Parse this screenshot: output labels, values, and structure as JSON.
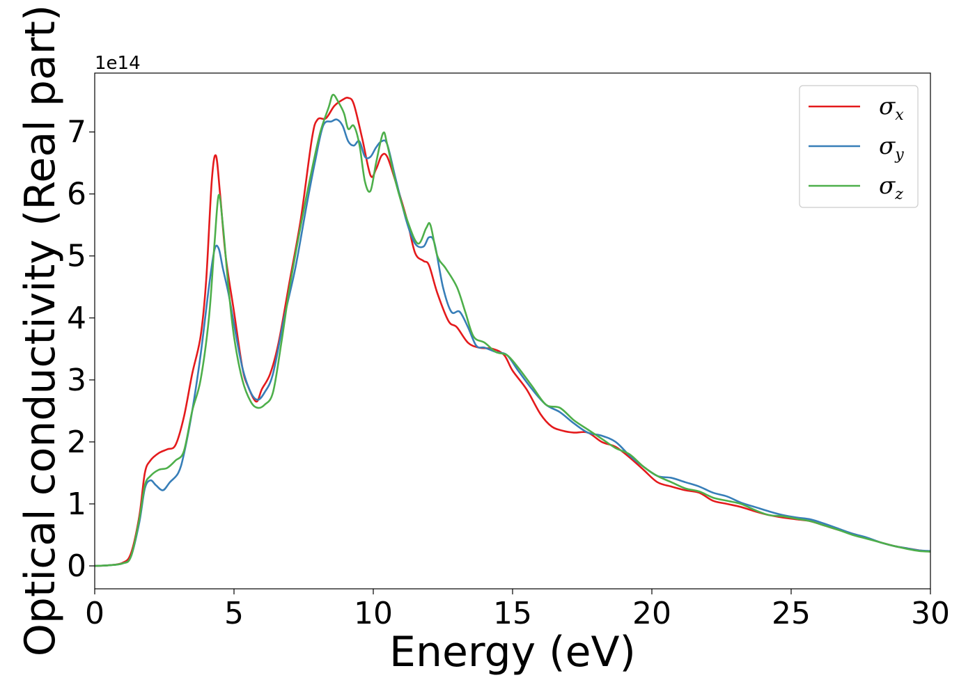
{
  "chart_data": {
    "type": "line",
    "title": "",
    "xlabel": "Energy (eV)",
    "ylabel": "Optical conductivity (Real part)",
    "y_offset_label": "1e14",
    "xlim": [
      0,
      30
    ],
    "ylim": [
      -0.37,
      7.95
    ],
    "x_ticks": [
      0,
      5,
      10,
      15,
      20,
      25,
      30
    ],
    "y_ticks": [
      0,
      1,
      2,
      3,
      4,
      5,
      6,
      7
    ],
    "grid": false,
    "legend_position": "top-right",
    "series": [
      {
        "name": "σx",
        "symbol": "σ",
        "subscript": "x",
        "color": "#e41a1c",
        "points": [
          [
            0,
            0
          ],
          [
            0.5,
            0.01
          ],
          [
            1.0,
            0.05
          ],
          [
            1.3,
            0.2
          ],
          [
            1.6,
            0.8
          ],
          [
            1.8,
            1.5
          ],
          [
            2.0,
            1.7
          ],
          [
            2.3,
            1.82
          ],
          [
            2.6,
            1.88
          ],
          [
            2.9,
            1.95
          ],
          [
            3.2,
            2.4
          ],
          [
            3.5,
            3.1
          ],
          [
            3.8,
            3.7
          ],
          [
            4.0,
            4.6
          ],
          [
            4.2,
            6.2
          ],
          [
            4.35,
            6.62
          ],
          [
            4.5,
            6.0
          ],
          [
            4.7,
            5.0
          ],
          [
            5.0,
            4.1
          ],
          [
            5.3,
            3.2
          ],
          [
            5.5,
            2.9
          ],
          [
            5.8,
            2.65
          ],
          [
            6.0,
            2.85
          ],
          [
            6.3,
            3.1
          ],
          [
            6.6,
            3.6
          ],
          [
            7.0,
            4.6
          ],
          [
            7.4,
            5.6
          ],
          [
            7.8,
            6.9
          ],
          [
            8.0,
            7.2
          ],
          [
            8.3,
            7.22
          ],
          [
            8.6,
            7.42
          ],
          [
            8.9,
            7.52
          ],
          [
            9.1,
            7.55
          ],
          [
            9.3,
            7.45
          ],
          [
            9.6,
            6.9
          ],
          [
            9.9,
            6.3
          ],
          [
            10.1,
            6.4
          ],
          [
            10.3,
            6.62
          ],
          [
            10.5,
            6.6
          ],
          [
            10.8,
            6.2
          ],
          [
            11.2,
            5.6
          ],
          [
            11.5,
            5.05
          ],
          [
            11.8,
            4.92
          ],
          [
            12.0,
            4.85
          ],
          [
            12.3,
            4.4
          ],
          [
            12.7,
            3.95
          ],
          [
            13.0,
            3.85
          ],
          [
            13.4,
            3.6
          ],
          [
            13.8,
            3.52
          ],
          [
            14.3,
            3.5
          ],
          [
            14.7,
            3.4
          ],
          [
            15.0,
            3.15
          ],
          [
            15.5,
            2.85
          ],
          [
            16.0,
            2.45
          ],
          [
            16.4,
            2.25
          ],
          [
            16.8,
            2.18
          ],
          [
            17.2,
            2.15
          ],
          [
            17.7,
            2.15
          ],
          [
            18.2,
            2.0
          ],
          [
            18.7,
            1.92
          ],
          [
            19.2,
            1.75
          ],
          [
            19.7,
            1.55
          ],
          [
            20.2,
            1.35
          ],
          [
            20.7,
            1.28
          ],
          [
            21.2,
            1.22
          ],
          [
            21.7,
            1.18
          ],
          [
            22.2,
            1.05
          ],
          [
            22.7,
            1.0
          ],
          [
            23.2,
            0.95
          ],
          [
            23.7,
            0.88
          ],
          [
            24.2,
            0.82
          ],
          [
            24.7,
            0.78
          ],
          [
            25.2,
            0.75
          ],
          [
            25.7,
            0.72
          ],
          [
            26.2,
            0.65
          ],
          [
            26.7,
            0.58
          ],
          [
            27.2,
            0.52
          ],
          [
            27.7,
            0.45
          ],
          [
            28.2,
            0.38
          ],
          [
            28.7,
            0.32
          ],
          [
            29.2,
            0.28
          ],
          [
            29.6,
            0.25
          ],
          [
            30,
            0.23
          ]
        ]
      },
      {
        "name": "σy",
        "symbol": "σ",
        "subscript": "y",
        "color": "#377eb8",
        "points": [
          [
            0,
            0
          ],
          [
            0.5,
            0.01
          ],
          [
            1.0,
            0.04
          ],
          [
            1.3,
            0.15
          ],
          [
            1.6,
            0.7
          ],
          [
            1.8,
            1.25
          ],
          [
            2.0,
            1.38
          ],
          [
            2.2,
            1.3
          ],
          [
            2.45,
            1.22
          ],
          [
            2.7,
            1.35
          ],
          [
            3.0,
            1.5
          ],
          [
            3.2,
            1.8
          ],
          [
            3.5,
            2.5
          ],
          [
            3.8,
            3.4
          ],
          [
            4.1,
            4.5
          ],
          [
            4.3,
            5.1
          ],
          [
            4.45,
            5.12
          ],
          [
            4.6,
            4.8
          ],
          [
            4.8,
            4.4
          ],
          [
            5.0,
            3.9
          ],
          [
            5.3,
            3.2
          ],
          [
            5.6,
            2.8
          ],
          [
            5.85,
            2.68
          ],
          [
            6.1,
            2.8
          ],
          [
            6.4,
            3.1
          ],
          [
            6.8,
            4.0
          ],
          [
            7.2,
            4.8
          ],
          [
            7.6,
            5.8
          ],
          [
            7.9,
            6.5
          ],
          [
            8.2,
            7.1
          ],
          [
            8.5,
            7.17
          ],
          [
            8.7,
            7.2
          ],
          [
            8.9,
            7.1
          ],
          [
            9.1,
            6.85
          ],
          [
            9.3,
            6.78
          ],
          [
            9.5,
            6.85
          ],
          [
            9.7,
            6.6
          ],
          [
            9.9,
            6.6
          ],
          [
            10.1,
            6.75
          ],
          [
            10.3,
            6.85
          ],
          [
            10.5,
            6.8
          ],
          [
            10.8,
            6.25
          ],
          [
            11.2,
            5.55
          ],
          [
            11.5,
            5.2
          ],
          [
            11.8,
            5.15
          ],
          [
            12.0,
            5.3
          ],
          [
            12.2,
            5.2
          ],
          [
            12.5,
            4.5
          ],
          [
            12.8,
            4.1
          ],
          [
            13.1,
            4.1
          ],
          [
            13.4,
            3.85
          ],
          [
            13.7,
            3.55
          ],
          [
            14.0,
            3.52
          ],
          [
            14.4,
            3.45
          ],
          [
            14.8,
            3.4
          ],
          [
            15.2,
            3.15
          ],
          [
            15.7,
            2.85
          ],
          [
            16.2,
            2.6
          ],
          [
            16.7,
            2.48
          ],
          [
            17.2,
            2.3
          ],
          [
            17.7,
            2.15
          ],
          [
            18.2,
            2.1
          ],
          [
            18.7,
            2.0
          ],
          [
            19.2,
            1.78
          ],
          [
            19.7,
            1.6
          ],
          [
            20.2,
            1.45
          ],
          [
            20.7,
            1.42
          ],
          [
            21.2,
            1.35
          ],
          [
            21.7,
            1.28
          ],
          [
            22.2,
            1.18
          ],
          [
            22.7,
            1.12
          ],
          [
            23.2,
            1.02
          ],
          [
            23.7,
            0.95
          ],
          [
            24.2,
            0.88
          ],
          [
            24.7,
            0.82
          ],
          [
            25.2,
            0.78
          ],
          [
            25.7,
            0.75
          ],
          [
            26.2,
            0.68
          ],
          [
            26.7,
            0.6
          ],
          [
            27.2,
            0.52
          ],
          [
            27.7,
            0.46
          ],
          [
            28.2,
            0.38
          ],
          [
            28.7,
            0.32
          ],
          [
            29.2,
            0.28
          ],
          [
            29.6,
            0.25
          ],
          [
            30,
            0.24
          ]
        ]
      },
      {
        "name": "σz",
        "symbol": "σ",
        "subscript": "z",
        "color": "#4daf4a",
        "points": [
          [
            0,
            0
          ],
          [
            0.5,
            0.01
          ],
          [
            1.0,
            0.04
          ],
          [
            1.3,
            0.15
          ],
          [
            1.6,
            0.75
          ],
          [
            1.8,
            1.3
          ],
          [
            2.0,
            1.45
          ],
          [
            2.3,
            1.55
          ],
          [
            2.6,
            1.58
          ],
          [
            2.9,
            1.7
          ],
          [
            3.2,
            1.85
          ],
          [
            3.5,
            2.5
          ],
          [
            3.8,
            3.0
          ],
          [
            4.1,
            4.0
          ],
          [
            4.3,
            5.2
          ],
          [
            4.45,
            5.98
          ],
          [
            4.6,
            5.5
          ],
          [
            4.8,
            4.5
          ],
          [
            5.0,
            3.7
          ],
          [
            5.3,
            3.0
          ],
          [
            5.6,
            2.65
          ],
          [
            5.85,
            2.55
          ],
          [
            6.1,
            2.6
          ],
          [
            6.4,
            2.8
          ],
          [
            6.7,
            3.6
          ],
          [
            7.0,
            4.5
          ],
          [
            7.4,
            5.5
          ],
          [
            7.8,
            6.4
          ],
          [
            8.1,
            7.0
          ],
          [
            8.4,
            7.4
          ],
          [
            8.55,
            7.6
          ],
          [
            8.75,
            7.48
          ],
          [
            8.95,
            7.3
          ],
          [
            9.1,
            7.05
          ],
          [
            9.3,
            7.1
          ],
          [
            9.5,
            6.8
          ],
          [
            9.7,
            6.2
          ],
          [
            9.9,
            6.05
          ],
          [
            10.1,
            6.5
          ],
          [
            10.35,
            6.98
          ],
          [
            10.5,
            6.8
          ],
          [
            10.8,
            6.2
          ],
          [
            11.2,
            5.6
          ],
          [
            11.6,
            5.2
          ],
          [
            11.9,
            5.45
          ],
          [
            12.05,
            5.5
          ],
          [
            12.3,
            5.0
          ],
          [
            12.6,
            4.8
          ],
          [
            13.0,
            4.5
          ],
          [
            13.3,
            4.1
          ],
          [
            13.6,
            3.7
          ],
          [
            14.0,
            3.6
          ],
          [
            14.4,
            3.45
          ],
          [
            14.8,
            3.4
          ],
          [
            15.2,
            3.2
          ],
          [
            15.7,
            2.9
          ],
          [
            16.2,
            2.6
          ],
          [
            16.7,
            2.55
          ],
          [
            17.2,
            2.35
          ],
          [
            17.7,
            2.2
          ],
          [
            18.2,
            2.05
          ],
          [
            18.7,
            1.9
          ],
          [
            19.2,
            1.8
          ],
          [
            19.7,
            1.6
          ],
          [
            20.2,
            1.45
          ],
          [
            20.7,
            1.35
          ],
          [
            21.2,
            1.25
          ],
          [
            21.7,
            1.2
          ],
          [
            22.2,
            1.1
          ],
          [
            22.7,
            1.05
          ],
          [
            23.2,
            1.0
          ],
          [
            23.7,
            0.9
          ],
          [
            24.2,
            0.82
          ],
          [
            24.7,
            0.8
          ],
          [
            25.2,
            0.76
          ],
          [
            25.7,
            0.72
          ],
          [
            26.2,
            0.65
          ],
          [
            26.7,
            0.58
          ],
          [
            27.2,
            0.5
          ],
          [
            27.7,
            0.44
          ],
          [
            28.2,
            0.38
          ],
          [
            28.7,
            0.32
          ],
          [
            29.2,
            0.27
          ],
          [
            29.6,
            0.24
          ],
          [
            30,
            0.23
          ]
        ]
      }
    ]
  }
}
